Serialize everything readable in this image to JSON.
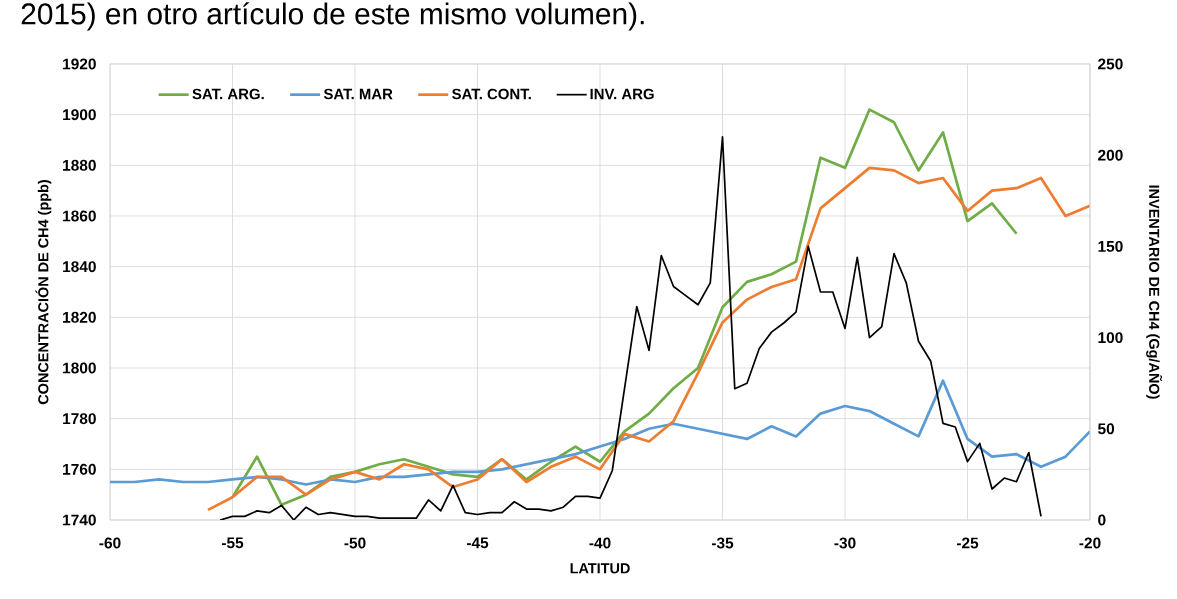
{
  "chart_data": {
    "type": "line",
    "xlabel": "LATITUD",
    "ylabel": "CONCENTRACIÓN DE CH4  (ppb)",
    "y2label": "INVENTARIO DE CH4 (Gg/AÑO)",
    "annotations": [
      "2015) en otro artículo de este mismo volumen)."
    ],
    "xlim": [
      -60,
      -20
    ],
    "xticks": [
      -60,
      -55,
      -50,
      -45,
      -40,
      -35,
      -30,
      -25,
      -20
    ],
    "ylim": [
      1740,
      1920
    ],
    "yticks": [
      1740,
      1760,
      1780,
      1800,
      1820,
      1840,
      1860,
      1880,
      1900,
      1920
    ],
    "y2lim": [
      0,
      250
    ],
    "y2ticks": [
      0,
      50,
      100,
      150,
      200,
      250
    ],
    "grid": true,
    "legend": "top left",
    "series": [
      {
        "name": "SAT. ARG.",
        "color": "#70ad47",
        "x": [
          -55,
          -54,
          -53,
          -52,
          -51,
          -50,
          -49,
          -48,
          -47,
          -46,
          -45,
          -44,
          -43,
          -42,
          -41,
          -40,
          -39,
          -38,
          -37,
          -36,
          -35,
          -34,
          -33,
          -32,
          -31,
          -30,
          -29,
          -28,
          -27,
          -26,
          -25,
          -24,
          -23
        ],
        "values": [
          1749,
          1765,
          1746,
          1750,
          1757,
          1759,
          1762,
          1764,
          1761,
          1758,
          1757,
          1764,
          1756,
          1763,
          1769,
          1763,
          1775,
          1782,
          1792,
          1800,
          1824,
          1834,
          1837,
          1842,
          1883,
          1879,
          1902,
          1897,
          1878,
          1893,
          1858,
          1865,
          1853
        ]
      },
      {
        "name": "SAT. MAR",
        "color": "#5b9bd5",
        "x": [
          -60,
          -59,
          -58,
          -57,
          -56,
          -55,
          -54,
          -53,
          -52,
          -51,
          -50,
          -49,
          -48,
          -47,
          -46,
          -45,
          -44,
          -43,
          -42,
          -41,
          -40,
          -39,
          -38,
          -37,
          -36,
          -35,
          -34,
          -33,
          -32,
          -31,
          -30,
          -29,
          -28,
          -27,
          -26,
          -25,
          -24,
          -23,
          -22,
          -21,
          -20
        ],
        "values": [
          1755,
          1755,
          1756,
          1755,
          1755,
          1756,
          1757,
          1756,
          1754,
          1756,
          1755,
          1757,
          1757,
          1758,
          1759,
          1759,
          1760,
          1762,
          1764,
          1766,
          1769,
          1772,
          1776,
          1778,
          1776,
          1774,
          1772,
          1777,
          1773,
          1782,
          1785,
          1783,
          1778,
          1773,
          1795,
          1772,
          1765,
          1766,
          1761,
          1765,
          1775
        ]
      },
      {
        "name": "SAT. CONT.",
        "color": "#ed7d31",
        "x": [
          -56,
          -55,
          -54,
          -53,
          -52,
          -51,
          -50,
          -49,
          -48,
          -47,
          -46,
          -45,
          -44,
          -43,
          -42,
          -41,
          -40,
          -39,
          -38,
          -37,
          -36,
          -35,
          -34,
          -33,
          -32,
          -31,
          -30,
          -29,
          -28,
          -27,
          -26,
          -25,
          -24,
          -23,
          -22,
          -21,
          -20
        ],
        "values": [
          1744,
          1749,
          1757,
          1757,
          1750,
          1756,
          1759,
          1756,
          1762,
          1760,
          1753,
          1756,
          1764,
          1755,
          1761,
          1765,
          1760,
          1774,
          1771,
          1779,
          1798,
          1818,
          1827,
          1832,
          1835,
          1863,
          1871,
          1879,
          1878,
          1873,
          1875,
          1862,
          1870,
          1871,
          1875,
          1860,
          1864
        ]
      },
      {
        "name": "INV. ARG",
        "color": "#000000",
        "axis": "y2",
        "x": [
          -55.5,
          -55,
          -54.5,
          -54,
          -53.5,
          -53,
          -52.5,
          -52,
          -51.5,
          -51,
          -50.5,
          -50,
          -49.5,
          -49,
          -48.5,
          -48,
          -47.5,
          -47,
          -46.5,
          -46,
          -45.5,
          -45,
          -44.5,
          -44,
          -43.5,
          -43,
          -42.5,
          -42,
          -41.5,
          -41,
          -40.5,
          -40,
          -39.5,
          -39,
          -38.5,
          -38,
          -37.5,
          -37,
          -36.5,
          -36,
          -35.5,
          -35,
          -34.5,
          -34,
          -33.5,
          -33,
          -32.5,
          -32,
          -31.5,
          -31,
          -30.5,
          -30,
          -29.5,
          -29,
          -28.5,
          -28,
          -27.5,
          -27,
          -26.5,
          -26,
          -25.5,
          -25,
          -24.5,
          -24,
          -23.5,
          -23,
          -22.5,
          -22
        ],
        "values": [
          0,
          2,
          2,
          5,
          4,
          8,
          0,
          7,
          3,
          4,
          3,
          2,
          2,
          1,
          1,
          1,
          1,
          11,
          5,
          19,
          4,
          3,
          4,
          4,
          10,
          6,
          6,
          5,
          7,
          13,
          13,
          12,
          27,
          72,
          117,
          93,
          145,
          128,
          123,
          118,
          130,
          210,
          72,
          75,
          94,
          103,
          108,
          114,
          150,
          125,
          125,
          105,
          144,
          100,
          106,
          146,
          130,
          98,
          87,
          53,
          51,
          32,
          42,
          17,
          23,
          21,
          37,
          2
        ]
      }
    ]
  }
}
